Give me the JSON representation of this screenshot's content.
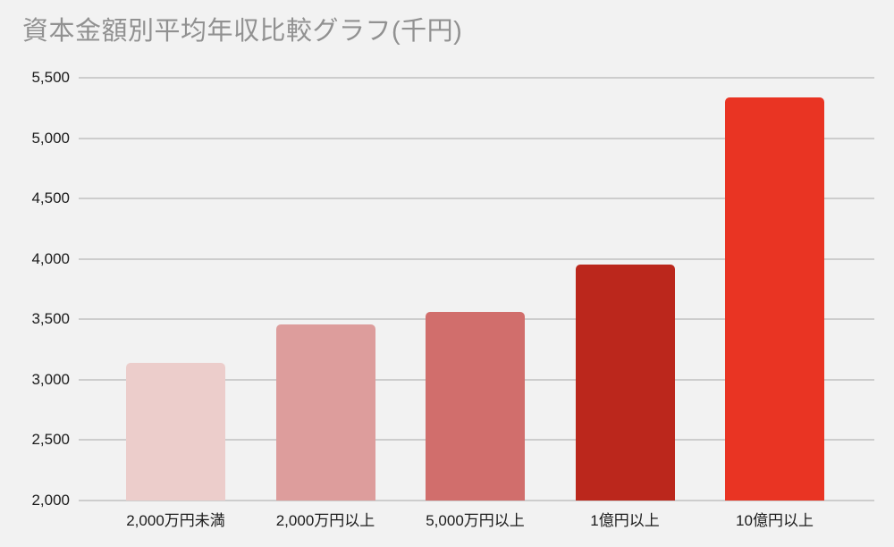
{
  "title": "資本金額別平均年収比較グラフ(千円)",
  "chart_data": {
    "type": "bar",
    "title": "資本金額別平均年収比較グラフ(千円)",
    "categories": [
      "2,000万円未満",
      "2,000万円以上",
      "5,000万円以上",
      "1億円以上",
      "10億円以上"
    ],
    "values": [
      3140,
      3460,
      3560,
      3950,
      5340
    ],
    "bar_colors": [
      "#eccdcb",
      "#dd9d9c",
      "#d16e6c",
      "#bb271c",
      "#e93423"
    ],
    "xlabel": "",
    "ylabel": "",
    "ylim": [
      2000,
      5500
    ],
    "ytick_step": 500,
    "ytick_labels": [
      "5,500",
      "5,000",
      "4,500",
      "4,000",
      "3,500",
      "3,000",
      "2,500",
      "2,000"
    ],
    "grid": true,
    "legend": false,
    "colors": {
      "background": "#f2f2f2",
      "gridline": "#cdcdcd",
      "title_text": "#919191",
      "axis_text": "#1b1b1b"
    }
  }
}
